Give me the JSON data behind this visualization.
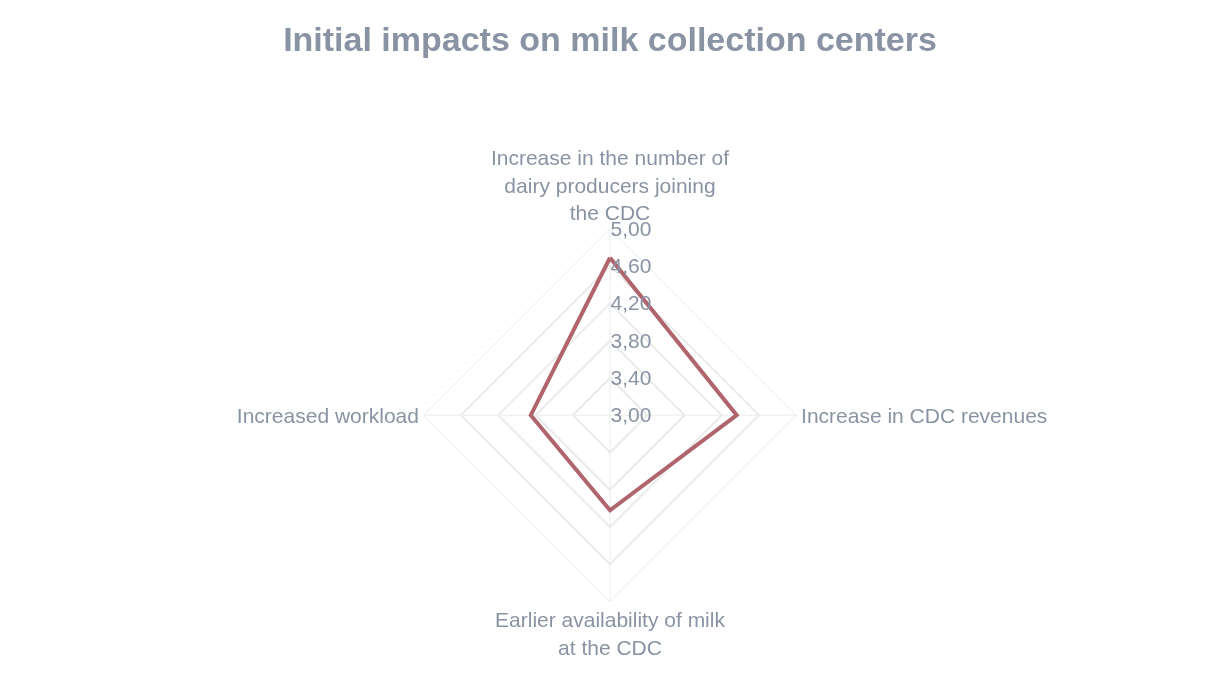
{
  "chart_data": {
    "type": "radar",
    "title": "Initial impacts on milk collection centers",
    "categories": [
      "Increase in the number of dairy producers joining the CDC",
      "Increase in CDC revenues",
      "Earlier availability of milk at the CDC",
      "Increased workload"
    ],
    "series": [
      {
        "color": "#b0646d",
        "values": [
          4.69,
          4.36,
          4.02,
          3.85
        ]
      }
    ],
    "ylim": [
      3,
      5
    ],
    "yticks": [
      {
        "value": 3,
        "label": "3,00"
      },
      {
        "value": 3.4,
        "label": "3,40"
      },
      {
        "value": 3.8,
        "label": "3,80"
      },
      {
        "value": 4.2,
        "label": "4,20"
      },
      {
        "value": 4.6,
        "label": "4,60"
      },
      {
        "value": 5,
        "label": "5,00"
      }
    ],
    "grid": true,
    "marker": "none"
  }
}
